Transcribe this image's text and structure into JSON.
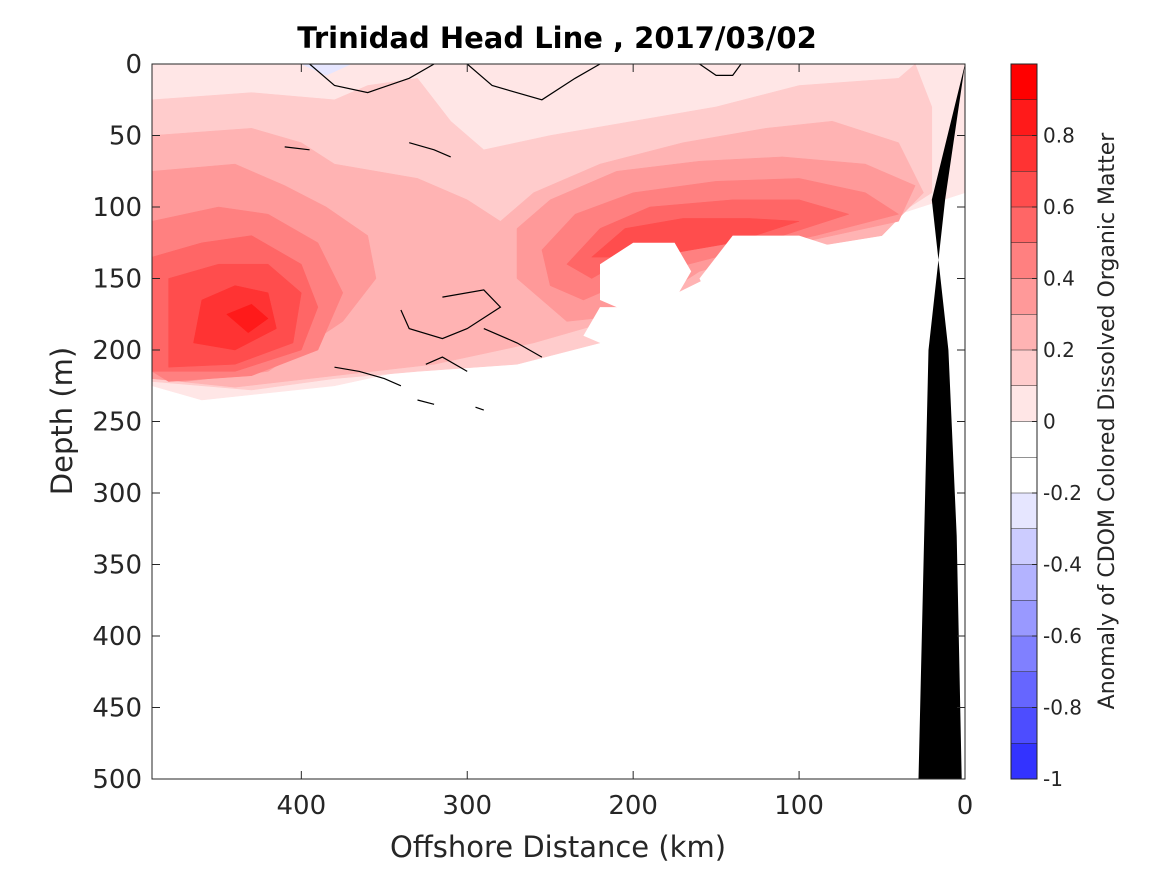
{
  "chart_data": {
    "type": "heatmap",
    "subtype": "filled-contour-section",
    "title": "Trinidad Head Line , 2017/03/02",
    "xlabel": "Offshore Distance (km)",
    "ylabel": "Depth (m)",
    "xlim": [
      490,
      0
    ],
    "ylim": [
      0,
      500
    ],
    "x_reversed": true,
    "y_reversed": true,
    "xticks": [
      400,
      300,
      200,
      100,
      0
    ],
    "yticks": [
      0,
      50,
      100,
      150,
      200,
      250,
      300,
      350,
      400,
      450,
      500
    ],
    "grid": false,
    "colorbar": {
      "label": "Anomaly of CDOM Colored Dissolved Organic Matter",
      "range": [
        -1,
        1
      ],
      "ticks": [
        0.8,
        0.6,
        0.4,
        0.2,
        0,
        -0.2,
        -0.4,
        -0.6,
        -0.8,
        -1
      ],
      "tick_labels": [
        "0.8",
        "0.6",
        "0.4",
        "0.2",
        "0",
        "-0.2",
        "-0.4",
        "-0.6",
        "-0.8",
        "-1"
      ],
      "levels": [
        {
          "lo": 0.9,
          "hi": 1.0,
          "color": "#ff0000"
        },
        {
          "lo": 0.8,
          "hi": 0.9,
          "color": "#ff1a1a"
        },
        {
          "lo": 0.7,
          "hi": 0.8,
          "color": "#ff3333"
        },
        {
          "lo": 0.6,
          "hi": 0.7,
          "color": "#ff4d4d"
        },
        {
          "lo": 0.5,
          "hi": 0.6,
          "color": "#ff6666"
        },
        {
          "lo": 0.4,
          "hi": 0.5,
          "color": "#ff8080"
        },
        {
          "lo": 0.3,
          "hi": 0.4,
          "color": "#ff9999"
        },
        {
          "lo": 0.2,
          "hi": 0.3,
          "color": "#ffb3b3"
        },
        {
          "lo": 0.1,
          "hi": 0.2,
          "color": "#ffcccc"
        },
        {
          "lo": 0.0,
          "hi": 0.1,
          "color": "#ffe6e6"
        },
        {
          "lo": -0.1,
          "hi": 0.0,
          "color": "#ffffff"
        },
        {
          "lo": -0.2,
          "hi": -0.1,
          "color": "#ffffff"
        },
        {
          "lo": -0.3,
          "hi": -0.2,
          "color": "#e6e6ff"
        },
        {
          "lo": -0.4,
          "hi": -0.3,
          "color": "#ccccff"
        },
        {
          "lo": -0.5,
          "hi": -0.4,
          "color": "#b3b3ff"
        },
        {
          "lo": -0.6,
          "hi": -0.5,
          "color": "#9999ff"
        },
        {
          "lo": -0.7,
          "hi": -0.6,
          "color": "#8080ff"
        },
        {
          "lo": -0.8,
          "hi": -0.7,
          "color": "#6666ff"
        },
        {
          "lo": -0.9,
          "hi": -0.8,
          "color": "#4d4dff"
        },
        {
          "lo": -1.0,
          "hi": -0.9,
          "color": "#3333ff"
        },
        {
          "lo": -1.1,
          "hi": -1.0,
          "color": "#0000ff"
        }
      ]
    },
    "bathymetry": {
      "color": "#000000",
      "points": [
        [
          0,
          0
        ],
        [
          20,
          95
        ],
        [
          10,
          200
        ],
        [
          5,
          330
        ],
        [
          2,
          500
        ],
        [
          28,
          500
        ],
        [
          22,
          200
        ],
        [
          12,
          95
        ]
      ]
    },
    "anomaly_regions": [
      {
        "level": 0.1,
        "color": "#ffe6e6",
        "points": [
          [
            490,
            0
          ],
          [
            0,
            0
          ],
          [
            0,
            90
          ],
          [
            40,
            105
          ],
          [
            150,
            120
          ],
          [
            180,
            140
          ],
          [
            200,
            160
          ],
          [
            230,
            185
          ],
          [
            260,
            200
          ],
          [
            300,
            205
          ],
          [
            340,
            215
          ],
          [
            380,
            225
          ],
          [
            420,
            230
          ],
          [
            460,
            235
          ],
          [
            490,
            225
          ]
        ]
      },
      {
        "level": 0.2,
        "color": "#ffcccc",
        "points": [
          [
            490,
            25
          ],
          [
            430,
            20
          ],
          [
            380,
            25
          ],
          [
            360,
            15
          ],
          [
            330,
            10
          ],
          [
            310,
            40
          ],
          [
            290,
            60
          ],
          [
            250,
            50
          ],
          [
            200,
            40
          ],
          [
            150,
            30
          ],
          [
            100,
            15
          ],
          [
            40,
            10
          ],
          [
            30,
            0
          ],
          [
            20,
            30
          ],
          [
            20,
            90
          ],
          [
            60,
            120
          ],
          [
            120,
            135
          ],
          [
            180,
            160
          ],
          [
            220,
            195
          ],
          [
            270,
            210
          ],
          [
            330,
            215
          ],
          [
            380,
            220
          ],
          [
            430,
            228
          ],
          [
            490,
            222
          ]
        ]
      },
      {
        "level": 0.3,
        "color": "#ffb3b3",
        "points": [
          [
            490,
            50
          ],
          [
            430,
            45
          ],
          [
            400,
            55
          ],
          [
            380,
            70
          ],
          [
            330,
            80
          ],
          [
            300,
            95
          ],
          [
            280,
            110
          ],
          [
            260,
            90
          ],
          [
            220,
            70
          ],
          [
            170,
            55
          ],
          [
            120,
            45
          ],
          [
            80,
            40
          ],
          [
            40,
            55
          ],
          [
            25,
            90
          ],
          [
            50,
            120
          ],
          [
            130,
            135
          ],
          [
            200,
            175
          ],
          [
            260,
            195
          ],
          [
            320,
            210
          ],
          [
            380,
            218
          ],
          [
            440,
            226
          ],
          [
            490,
            220
          ]
        ]
      },
      {
        "level": 0.4,
        "color": "#ff9999",
        "points": [
          [
            490,
            75
          ],
          [
            440,
            70
          ],
          [
            410,
            85
          ],
          [
            385,
            100
          ],
          [
            360,
            120
          ],
          [
            355,
            150
          ],
          [
            375,
            180
          ],
          [
            420,
            215
          ],
          [
            470,
            222
          ],
          [
            490,
            220
          ]
        ]
      },
      {
        "level": 0.4,
        "color": "#ff9999",
        "points": [
          [
            270,
            115
          ],
          [
            250,
            95
          ],
          [
            210,
            75
          ],
          [
            160,
            68
          ],
          [
            110,
            65
          ],
          [
            60,
            70
          ],
          [
            30,
            85
          ],
          [
            40,
            110
          ],
          [
            100,
            125
          ],
          [
            160,
            145
          ],
          [
            200,
            175
          ],
          [
            240,
            180
          ],
          [
            270,
            150
          ]
        ]
      },
      {
        "level": 0.5,
        "color": "#ff8080",
        "points": [
          [
            490,
            110
          ],
          [
            450,
            100
          ],
          [
            420,
            105
          ],
          [
            390,
            125
          ],
          [
            375,
            160
          ],
          [
            390,
            200
          ],
          [
            430,
            218
          ],
          [
            480,
            222
          ],
          [
            490,
            215
          ]
        ]
      },
      {
        "level": 0.5,
        "color": "#ff8080",
        "points": [
          [
            255,
            130
          ],
          [
            235,
            105
          ],
          [
            200,
            90
          ],
          [
            150,
            82
          ],
          [
            100,
            80
          ],
          [
            60,
            90
          ],
          [
            40,
            105
          ],
          [
            90,
            120
          ],
          [
            150,
            135
          ],
          [
            200,
            150
          ],
          [
            230,
            165
          ],
          [
            250,
            155
          ]
        ]
      },
      {
        "level": 0.6,
        "color": "#ff6666",
        "points": [
          [
            490,
            135
          ],
          [
            460,
            125
          ],
          [
            430,
            120
          ],
          [
            400,
            140
          ],
          [
            390,
            170
          ],
          [
            400,
            200
          ],
          [
            440,
            215
          ],
          [
            490,
            215
          ]
        ]
      },
      {
        "level": 0.6,
        "color": "#ff6666",
        "points": [
          [
            240,
            140
          ],
          [
            220,
            115
          ],
          [
            190,
            100
          ],
          [
            140,
            95
          ],
          [
            100,
            95
          ],
          [
            70,
            105
          ],
          [
            110,
            120
          ],
          [
            160,
            128
          ],
          [
            210,
            140
          ],
          [
            225,
            150
          ]
        ]
      },
      {
        "level": 0.7,
        "color": "#ff4d4d",
        "points": [
          [
            480,
            150
          ],
          [
            450,
            140
          ],
          [
            420,
            140
          ],
          [
            400,
            160
          ],
          [
            405,
            195
          ],
          [
            440,
            210
          ],
          [
            480,
            212
          ]
        ]
      },
      {
        "level": 0.7,
        "color": "#ff4d4d",
        "points": [
          [
            225,
            135
          ],
          [
            205,
            115
          ],
          [
            170,
            108
          ],
          [
            130,
            108
          ],
          [
            100,
            110
          ],
          [
            140,
            125
          ],
          [
            190,
            135
          ]
        ]
      },
      {
        "level": 0.8,
        "color": "#ff3333",
        "points": [
          [
            460,
            165
          ],
          [
            440,
            155
          ],
          [
            420,
            160
          ],
          [
            415,
            185
          ],
          [
            440,
            200
          ],
          [
            465,
            195
          ]
        ]
      },
      {
        "level": 0.9,
        "color": "#ff1a1a",
        "points": [
          [
            445,
            175
          ],
          [
            430,
            168
          ],
          [
            420,
            178
          ],
          [
            432,
            188
          ]
        ]
      },
      {
        "level": -0.3,
        "color": "#e6e6ff",
        "points": [
          [
            400,
            0
          ],
          [
            370,
            0
          ],
          [
            385,
            8
          ]
        ]
      }
    ],
    "missing_data_patches": [
      [
        [
          200,
          125
        ],
        [
          175,
          125
        ],
        [
          165,
          145
        ],
        [
          175,
          165
        ],
        [
          200,
          175
        ],
        [
          220,
          165
        ],
        [
          220,
          140
        ]
      ],
      [
        [
          140,
          120
        ],
        [
          100,
          120
        ],
        [
          60,
          135
        ],
        [
          40,
          150
        ],
        [
          30,
          165
        ],
        [
          60,
          180
        ],
        [
          110,
          185
        ],
        [
          150,
          175
        ],
        [
          160,
          150
        ]
      ],
      [
        [
          220,
          170
        ],
        [
          200,
          170
        ],
        [
          160,
          175
        ],
        [
          140,
          185
        ],
        [
          160,
          200
        ],
        [
          200,
          205
        ],
        [
          230,
          190
        ]
      ],
      [
        [
          110,
          185
        ],
        [
          60,
          190
        ],
        [
          40,
          215
        ],
        [
          90,
          220
        ],
        [
          110,
          205
        ]
      ]
    ],
    "zero_contour_lines": [
      [
        [
          395,
          0
        ],
        [
          380,
          15
        ],
        [
          360,
          20
        ],
        [
          335,
          10
        ],
        [
          320,
          0
        ]
      ],
      [
        [
          300,
          0
        ],
        [
          285,
          15
        ],
        [
          255,
          25
        ],
        [
          235,
          10
        ],
        [
          220,
          0
        ]
      ],
      [
        [
          160,
          0
        ],
        [
          150,
          8
        ],
        [
          140,
          8
        ],
        [
          135,
          0
        ]
      ],
      [
        [
          315,
          163
        ],
        [
          290,
          158
        ],
        [
          280,
          170
        ],
        [
          300,
          185
        ],
        [
          315,
          192
        ],
        [
          335,
          185
        ],
        [
          340,
          172
        ]
      ],
      [
        [
          290,
          185
        ],
        [
          270,
          195
        ],
        [
          255,
          205
        ]
      ],
      [
        [
          325,
          210
        ],
        [
          315,
          205
        ],
        [
          300,
          215
        ]
      ],
      [
        [
          380,
          212
        ],
        [
          365,
          215
        ],
        [
          350,
          220
        ],
        [
          340,
          225
        ]
      ],
      [
        [
          330,
          235
        ],
        [
          320,
          238
        ]
      ],
      [
        [
          295,
          240
        ],
        [
          290,
          242
        ]
      ],
      [
        [
          410,
          58
        ],
        [
          395,
          60
        ]
      ],
      [
        [
          335,
          55
        ],
        [
          320,
          60
        ],
        [
          310,
          65
        ]
      ]
    ]
  }
}
